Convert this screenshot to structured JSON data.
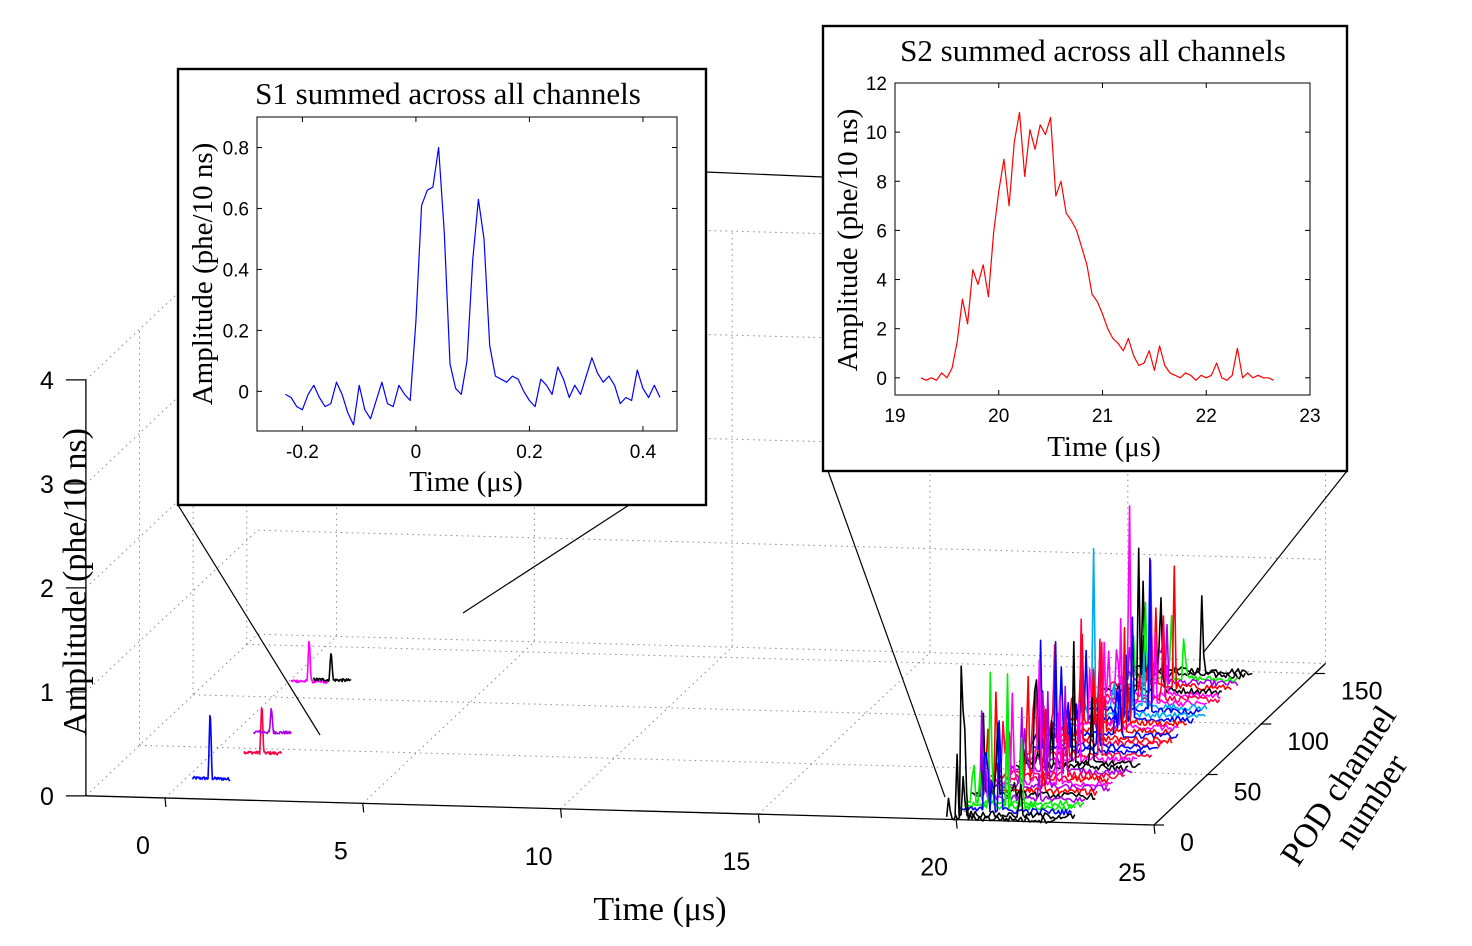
{
  "chart_data": [
    {
      "id": "main",
      "type": "line",
      "subtype": "3d-waterfall",
      "title": "",
      "xlabel": "Time (μs)",
      "ylabel": "POD channel number",
      "zlabel": "Amplitude (phe/10 ns)",
      "xlim": [
        -2,
        25
      ],
      "ylim": [
        0,
        160
      ],
      "zlim": [
        0,
        4
      ],
      "xticks": [
        "0",
        "5",
        "10",
        "15",
        "20",
        "25"
      ],
      "yticks": [
        "0",
        "50",
        "100",
        "150"
      ],
      "zticks": [
        "0",
        "1",
        "2",
        "3",
        "4"
      ],
      "grid": true,
      "series_colors": [
        "#0000ff",
        "#ff00ff",
        "#ff0044",
        "#00ee00",
        "#00aaee",
        "#000000",
        "#aa00ee",
        "#ff0000"
      ],
      "s1_pulses": [
        {
          "channel": 20,
          "time": 0.6,
          "peak": 0.7,
          "color": "#0000ff"
        },
        {
          "channel": 46,
          "time": 1.2,
          "peak": 0.5,
          "color": "#ff0044"
        },
        {
          "channel": 66,
          "time": 0.9,
          "peak": 0.25,
          "color": "#aa00ee"
        },
        {
          "channel": 116,
          "time": 0.5,
          "peak": 0.45,
          "color": "#ff00ff"
        },
        {
          "channel": 118,
          "time": 1.0,
          "peak": 0.3,
          "color": "#000000"
        }
      ],
      "s2_region": {
        "time_start": 19.5,
        "time_end": 22.8,
        "channel_min": 0,
        "channel_max": 150,
        "max_peak": 2.0
      }
    },
    {
      "id": "s1_inset",
      "type": "line",
      "title": "S1 summed across all channels",
      "xlabel": "Time (μs)",
      "ylabel": "Amplitude (phe/10 ns)",
      "xlim": [
        -0.28,
        0.46
      ],
      "ylim": [
        -0.13,
        0.9
      ],
      "xticks": [
        "-0.2",
        "0",
        "0.2",
        "0.4"
      ],
      "yticks": [
        "0",
        "0.2",
        "0.4",
        "0.6",
        "0.8"
      ],
      "color": "#0000ff",
      "series": [
        {
          "x": [
            -0.23,
            -0.22,
            -0.21,
            -0.2,
            -0.19,
            -0.18,
            -0.17,
            -0.16,
            -0.15,
            -0.14,
            -0.13,
            -0.12,
            -0.11,
            -0.1,
            -0.09,
            -0.08,
            -0.07,
            -0.06,
            -0.05,
            -0.04,
            -0.03,
            -0.02,
            -0.01,
            0.0,
            0.01,
            0.02,
            0.03,
            0.04,
            0.05,
            0.06,
            0.07,
            0.08,
            0.09,
            0.1,
            0.11,
            0.12,
            0.13,
            0.14,
            0.15,
            0.16,
            0.17,
            0.18,
            0.19,
            0.2,
            0.21,
            0.22,
            0.23,
            0.24,
            0.25,
            0.26,
            0.27,
            0.28,
            0.29,
            0.3,
            0.31,
            0.32,
            0.33,
            0.34,
            0.35,
            0.36,
            0.37,
            0.38,
            0.39,
            0.4,
            0.41,
            0.42,
            0.43
          ],
          "y": [
            -0.01,
            -0.02,
            -0.05,
            -0.06,
            -0.01,
            0.02,
            -0.02,
            -0.05,
            -0.04,
            0.03,
            -0.01,
            -0.07,
            -0.11,
            0.02,
            -0.06,
            -0.09,
            -0.03,
            0.03,
            -0.04,
            -0.05,
            0.02,
            -0.01,
            -0.03,
            0.23,
            0.61,
            0.66,
            0.67,
            0.8,
            0.52,
            0.09,
            0.01,
            -0.01,
            0.1,
            0.43,
            0.63,
            0.5,
            0.15,
            0.05,
            0.04,
            0.03,
            0.05,
            0.04,
            0.0,
            -0.03,
            -0.05,
            0.04,
            0.02,
            -0.01,
            0.08,
            0.04,
            -0.02,
            0.02,
            -0.01,
            0.05,
            0.11,
            0.06,
            0.03,
            0.05,
            0.02,
            -0.04,
            -0.02,
            -0.03,
            0.07,
            0.01,
            -0.02,
            0.02,
            -0.02
          ]
        }
      ]
    },
    {
      "id": "s2_inset",
      "type": "line",
      "title": "S2 summed across all channels",
      "xlabel": "Time (μs)",
      "ylabel": "Amplitude (phe/10 ns)",
      "xlim": [
        19,
        23
      ],
      "ylim": [
        -0.7,
        12
      ],
      "xticks": [
        "19",
        "20",
        "21",
        "22",
        "23"
      ],
      "yticks": [
        "0",
        "2",
        "4",
        "6",
        "8",
        "10",
        "12"
      ],
      "color": "#ff0000",
      "series": [
        {
          "x": [
            19.25,
            19.3,
            19.35,
            19.4,
            19.45,
            19.5,
            19.55,
            19.6,
            19.65,
            19.7,
            19.75,
            19.8,
            19.85,
            19.9,
            19.95,
            20.0,
            20.05,
            20.1,
            20.15,
            20.2,
            20.25,
            20.3,
            20.35,
            20.4,
            20.45,
            20.5,
            20.55,
            20.6,
            20.65,
            20.7,
            20.75,
            20.8,
            20.85,
            20.9,
            20.95,
            21.0,
            21.05,
            21.1,
            21.15,
            21.2,
            21.25,
            21.3,
            21.35,
            21.4,
            21.45,
            21.5,
            21.55,
            21.6,
            21.65,
            21.7,
            21.75,
            21.8,
            21.85,
            21.9,
            21.95,
            22.0,
            22.05,
            22.1,
            22.15,
            22.2,
            22.25,
            22.3,
            22.35,
            22.4,
            22.45,
            22.5,
            22.55,
            22.6,
            22.65
          ],
          "y": [
            0.0,
            -0.1,
            0.0,
            -0.1,
            0.2,
            0.0,
            0.4,
            1.5,
            3.2,
            2.2,
            4.4,
            3.8,
            4.6,
            3.3,
            5.9,
            7.6,
            8.9,
            7.0,
            9.6,
            10.8,
            8.2,
            10.1,
            9.3,
            10.3,
            9.9,
            10.6,
            7.4,
            8.0,
            6.7,
            6.4,
            6.0,
            5.3,
            4.6,
            3.4,
            3.1,
            2.6,
            2.0,
            1.6,
            1.4,
            1.1,
            1.6,
            0.9,
            0.5,
            0.6,
            1.1,
            0.3,
            1.3,
            0.5,
            0.2,
            0.1,
            0.0,
            0.2,
            0.1,
            -0.1,
            0.1,
            0.0,
            0.1,
            0.6,
            0.0,
            -0.1,
            0.1,
            1.2,
            0.0,
            0.2,
            0.0,
            0.1,
            0.0,
            0.0,
            -0.1
          ]
        }
      ]
    }
  ]
}
